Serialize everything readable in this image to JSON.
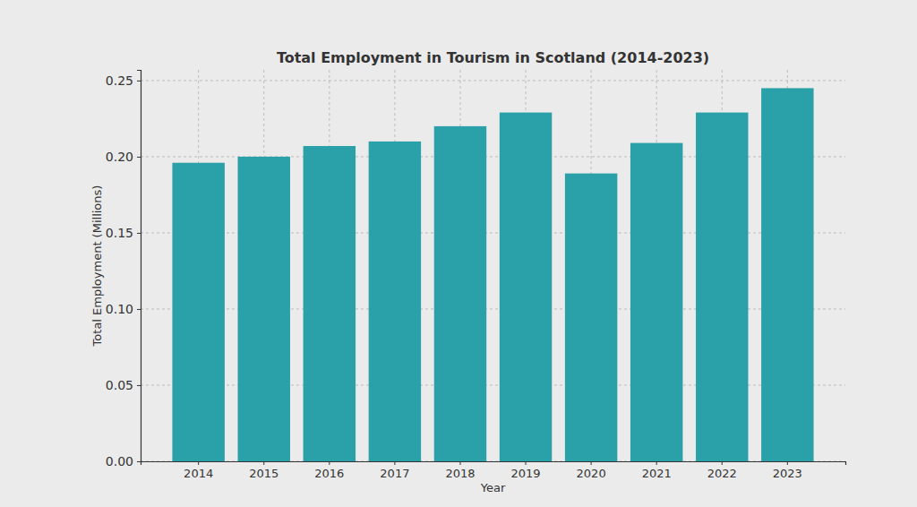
{
  "chart_data": {
    "type": "bar",
    "title": "Total Employment in Tourism in Scotland (2014-2023)",
    "x_label": "Year",
    "y_label": "Total Employment (Millions)",
    "categories": [
      "2014",
      "2015",
      "2016",
      "2017",
      "2018",
      "2019",
      "2020",
      "2021",
      "2022",
      "2023"
    ],
    "values": [
      0.196,
      0.2,
      0.207,
      0.21,
      0.22,
      0.229,
      0.189,
      0.209,
      0.229,
      0.245
    ],
    "color": "#2aa1a8",
    "ylim": [
      0,
      0.257
    ],
    "yticks": [
      {
        "value": 0,
        "label": "0.00"
      },
      {
        "value": 0.05,
        "label": "0.05"
      },
      {
        "value": 0.1,
        "label": "0.10"
      },
      {
        "value": 0.15,
        "label": "0.15"
      },
      {
        "value": 0.2,
        "label": "0.20"
      },
      {
        "value": 0.25,
        "label": "0.25"
      }
    ],
    "grid": true
  }
}
